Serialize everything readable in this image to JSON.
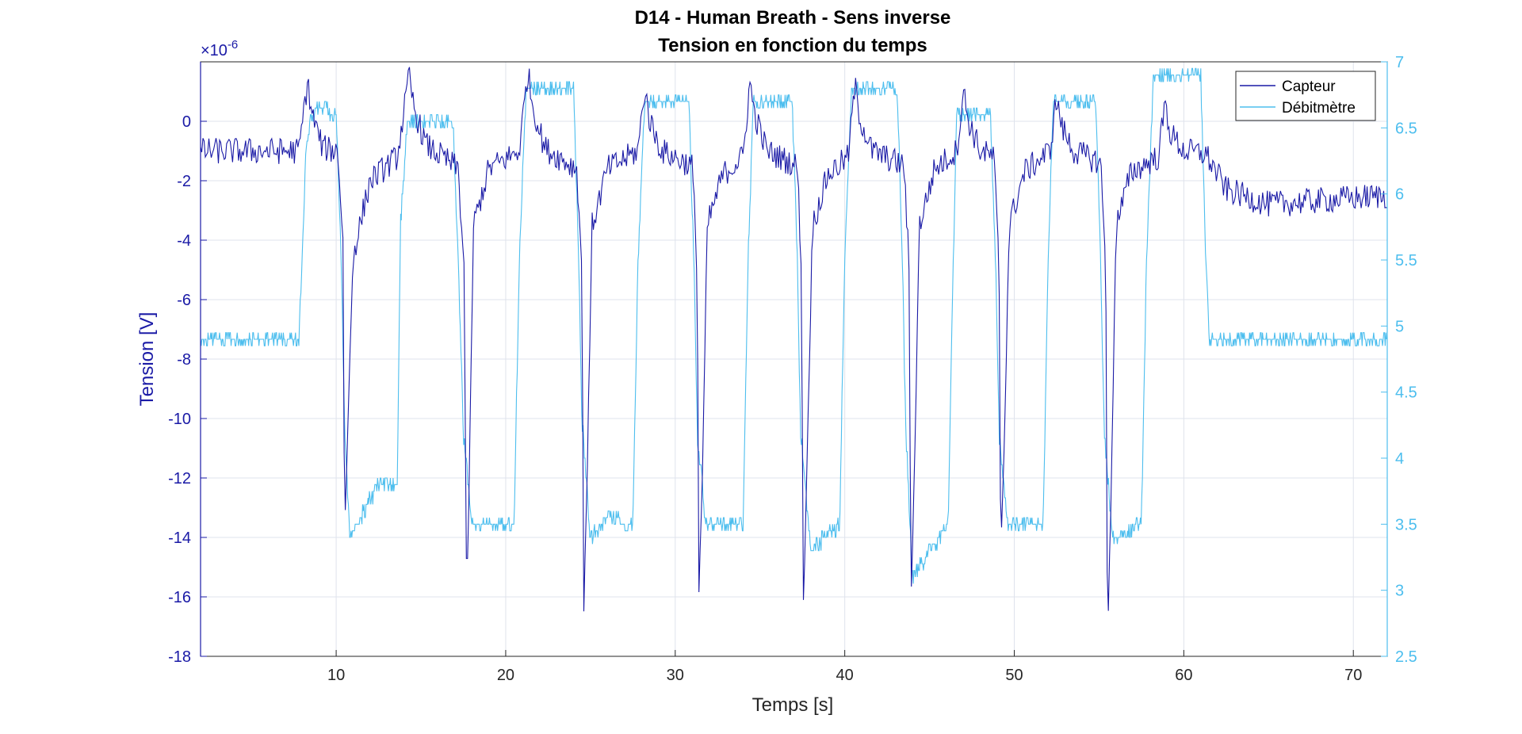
{
  "chart_data": {
    "type": "line",
    "title": "D14 - Human Breath - Sens inverse",
    "subtitle": "Tension en fonction du temps",
    "xlabel": "Temps [s]",
    "ylabel_left": "Tension [V]",
    "ylabel_right": "",
    "left_exponent": "×10",
    "left_exponent_power": "-6",
    "xlim": [
      2,
      72
    ],
    "ylim_left": [
      -18,
      2
    ],
    "ylim_right": [
      2.5,
      7
    ],
    "xticks": [
      "10",
      "20",
      "30",
      "40",
      "50",
      "60",
      "70"
    ],
    "yticks_left": [
      "0",
      "-2",
      "-4",
      "-6",
      "-8",
      "-10",
      "-12",
      "-14",
      "-16",
      "-18"
    ],
    "yticks_right": [
      "7",
      "6.5",
      "6",
      "5.5",
      "5",
      "4.5",
      "4",
      "3.5",
      "3",
      "2.5"
    ],
    "grid": true,
    "legend_position": "top-right",
    "colors": {
      "capteur": "#1a1aa6",
      "debitmetre": "#4dbeee",
      "grid": "#dfe3ec",
      "axis_left": "#1a1aa6",
      "axis_right": "#4dbeee"
    },
    "series": [
      {
        "name": "Capteur",
        "axis": "left",
        "baseline_noise": 0.45,
        "x": [
          2,
          7.8,
          8.3,
          8.6,
          9.2,
          10.1,
          10.4,
          10.5,
          10.7,
          11.0,
          12.0,
          13.6,
          14.3,
          14.6,
          15.3,
          17.2,
          17.55,
          17.7,
          17.85,
          18.1,
          19.0,
          20.8,
          21.3,
          21.6,
          22.3,
          24.2,
          24.5,
          24.6,
          24.8,
          25.1,
          26.0,
          27.8,
          28.2,
          28.5,
          29.2,
          31.0,
          31.3,
          31.4,
          31.6,
          31.9,
          32.8,
          34.0,
          34.4,
          34.7,
          35.4,
          37.2,
          37.45,
          37.55,
          37.75,
          38.1,
          39.0,
          40.2,
          40.6,
          40.9,
          41.6,
          43.5,
          43.8,
          43.9,
          44.1,
          44.4,
          45.3,
          46.6,
          47.0,
          47.3,
          48.0,
          48.8,
          49.1,
          49.2,
          49.4,
          49.7,
          50.6,
          52.1,
          52.5,
          52.8,
          53.5,
          55.1,
          55.4,
          55.5,
          55.7,
          56.0,
          56.9,
          58.5,
          58.9,
          59.2,
          60.0,
          61.3,
          62.5,
          65.0,
          72
        ],
        "values": [
          -1.0,
          -1.0,
          1.3,
          0.2,
          -0.9,
          -1.0,
          -4.0,
          -14.0,
          -10.0,
          -4.5,
          -2.0,
          -1.2,
          1.5,
          0.4,
          -0.8,
          -1.6,
          -5.0,
          -16.4,
          -12.0,
          -3.5,
          -1.6,
          -1.0,
          1.7,
          0.5,
          -0.9,
          -1.6,
          -5.0,
          -16.5,
          -12.0,
          -3.5,
          -1.6,
          -1.0,
          1.1,
          0.0,
          -1.0,
          -1.5,
          -5.0,
          -15.8,
          -12.0,
          -3.5,
          -1.8,
          -1.2,
          1.3,
          0.2,
          -1.0,
          -1.5,
          -5.0,
          -16.5,
          -12.0,
          -3.5,
          -1.8,
          -1.2,
          1.2,
          0.1,
          -1.0,
          -1.5,
          -5.0,
          -16.2,
          -12.0,
          -3.5,
          -1.6,
          -1.0,
          1.0,
          0.0,
          -1.0,
          -1.2,
          -5.0,
          -14.5,
          -11.0,
          -3.5,
          -1.7,
          -1.0,
          0.8,
          -0.2,
          -1.0,
          -1.4,
          -5.0,
          -17.5,
          -13.0,
          -3.5,
          -1.7,
          -1.2,
          0.6,
          -0.4,
          -1.0,
          -1.1,
          -2.3,
          -2.8,
          -2.5
        ]
      },
      {
        "name": "Débitmètre",
        "axis": "right",
        "x": [
          2,
          7.8,
          8.0,
          8.2,
          8.5,
          9.0,
          10.0,
          10.3,
          10.5,
          10.8,
          11.2,
          12.5,
          13.6,
          13.8,
          14.2,
          16.9,
          17.2,
          17.5,
          18.0,
          20.5,
          20.8,
          21.2,
          24.0,
          24.3,
          24.5,
          25.0,
          26.0,
          27.5,
          27.8,
          28.2,
          30.8,
          31.1,
          31.3,
          31.8,
          34.0,
          34.3,
          34.6,
          36.9,
          37.2,
          37.4,
          38.0,
          39.7,
          40.0,
          40.4,
          43.1,
          43.4,
          43.6,
          44.0,
          46.1,
          46.4,
          46.6,
          48.6,
          48.9,
          49.1,
          49.6,
          51.7,
          52.0,
          52.3,
          54.8,
          55.1,
          55.3,
          55.8,
          57.5,
          57.8,
          58.2,
          61.0,
          61.3,
          61.5,
          72
        ],
        "values": [
          4.9,
          4.9,
          5.5,
          6.3,
          6.6,
          6.65,
          6.6,
          5.5,
          4.2,
          3.4,
          3.5,
          3.8,
          3.8,
          5.8,
          6.55,
          6.55,
          5.5,
          4.2,
          3.5,
          3.5,
          5.5,
          6.8,
          6.8,
          5.5,
          4.3,
          3.4,
          3.55,
          3.5,
          5.5,
          6.7,
          6.7,
          5.5,
          4.2,
          3.5,
          3.5,
          5.5,
          6.7,
          6.7,
          5.5,
          4.2,
          3.3,
          3.5,
          5.5,
          6.8,
          6.8,
          5.5,
          4.2,
          3.1,
          3.5,
          5.5,
          6.6,
          6.6,
          5.5,
          4.2,
          3.5,
          3.5,
          5.5,
          6.7,
          6.7,
          5.5,
          4.2,
          3.4,
          3.5,
          5.5,
          6.9,
          6.9,
          5.5,
          4.9,
          4.9
        ]
      }
    ]
  }
}
